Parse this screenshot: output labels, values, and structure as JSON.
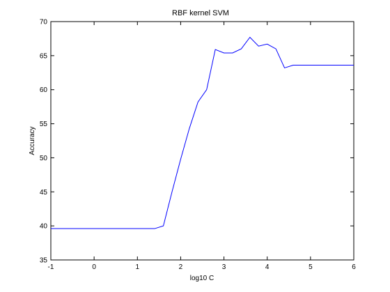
{
  "chart_data": {
    "type": "line",
    "title": "RBF kernel SVM",
    "xlabel": "log10 C",
    "ylabel": "Accuracy",
    "xlim": [
      -1,
      6
    ],
    "ylim": [
      35,
      70
    ],
    "xticks": [
      -1,
      0,
      1,
      2,
      3,
      4,
      5,
      6
    ],
    "yticks": [
      35,
      40,
      45,
      50,
      55,
      60,
      65,
      70
    ],
    "grid": false,
    "legend": "none",
    "line_color": "#0000ff",
    "series": [
      {
        "x": [
          -1.0,
          -0.8,
          -0.6,
          -0.4,
          -0.2,
          0.0,
          0.2,
          0.4,
          0.6,
          0.8,
          1.0,
          1.2,
          1.4,
          1.6,
          1.8,
          2.0,
          2.2,
          2.4,
          2.6,
          2.8,
          3.0,
          3.2,
          3.4,
          3.6,
          3.8,
          4.0,
          4.2,
          4.4,
          4.6,
          4.8,
          5.0,
          5.2,
          5.4,
          5.6,
          5.8,
          6.0
        ],
        "y": [
          39.6,
          39.6,
          39.6,
          39.6,
          39.6,
          39.6,
          39.6,
          39.6,
          39.6,
          39.6,
          39.6,
          39.6,
          39.6,
          40.0,
          45.0,
          49.8,
          54.3,
          58.2,
          60.0,
          65.9,
          65.4,
          65.4,
          66.0,
          67.7,
          66.4,
          66.7,
          66.0,
          63.2,
          63.6,
          63.6,
          63.6,
          63.6,
          63.6,
          63.6,
          63.6,
          63.6
        ]
      }
    ]
  }
}
